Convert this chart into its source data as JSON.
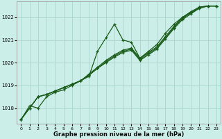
{
  "xlabel": "Graphe pression niveau de la mer (hPa)",
  "background_color": "#cceee8",
  "grid_color": "#aad4cc",
  "line_color": "#1a5c1a",
  "ylim": [
    1017.3,
    1022.7
  ],
  "xlim": [
    -0.5,
    23.5
  ],
  "yticks": [
    1018,
    1019,
    1020,
    1021,
    1022
  ],
  "xticks": [
    0,
    1,
    2,
    3,
    4,
    5,
    6,
    7,
    8,
    9,
    10,
    11,
    12,
    13,
    14,
    15,
    16,
    17,
    18,
    19,
    20,
    21,
    22,
    23
  ],
  "series": [
    [
      1017.5,
      1018.1,
      1018.0,
      1018.5,
      1018.7,
      1018.8,
      1019.0,
      1019.2,
      1019.4,
      1020.5,
      1021.1,
      1021.7,
      1021.0,
      1020.9,
      1020.2,
      1020.5,
      1020.8,
      1021.3,
      1021.7,
      1022.0,
      1022.2,
      1022.45,
      1022.5,
      1022.5
    ],
    [
      1017.5,
      1018.0,
      1018.5,
      1018.6,
      1018.75,
      1018.9,
      1019.05,
      1019.2,
      1019.45,
      1019.75,
      1020.0,
      1020.25,
      1020.45,
      1020.55,
      1020.1,
      1020.35,
      1020.6,
      1021.05,
      1021.5,
      1021.9,
      1022.15,
      1022.4,
      1022.5,
      1022.5
    ],
    [
      1017.5,
      1018.0,
      1018.5,
      1018.6,
      1018.75,
      1018.9,
      1019.05,
      1019.2,
      1019.45,
      1019.75,
      1020.05,
      1020.3,
      1020.5,
      1020.6,
      1020.15,
      1020.4,
      1020.65,
      1021.1,
      1021.55,
      1021.95,
      1022.2,
      1022.4,
      1022.5,
      1022.5
    ],
    [
      1017.5,
      1018.0,
      1018.5,
      1018.6,
      1018.75,
      1018.9,
      1019.05,
      1019.2,
      1019.5,
      1019.8,
      1020.1,
      1020.35,
      1020.55,
      1020.65,
      1020.2,
      1020.45,
      1020.7,
      1021.15,
      1021.6,
      1022.0,
      1022.25,
      1022.45,
      1022.5,
      1022.5
    ]
  ]
}
